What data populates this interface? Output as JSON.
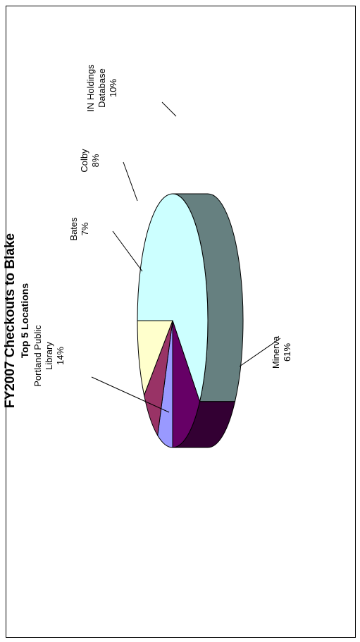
{
  "chart_data": {
    "type": "pie",
    "title": "FY2007 Checkouts to Blake",
    "subtitle": "Top 5 Locations",
    "orientation": "rotated-90-ccw",
    "style": "3d",
    "slices": [
      {
        "name": "Minerva",
        "label_lines": [
          "Minerva",
          "61%"
        ],
        "value": 61,
        "color": "#ccffff",
        "side_color": "#668080"
      },
      {
        "name": "Portland Public Library",
        "label_lines": [
          "Portland Public",
          "Library",
          "14%"
        ],
        "value": 14,
        "color": "#660066",
        "side_color": "#330033"
      },
      {
        "name": "Bates",
        "label_lines": [
          "Bates",
          "7%"
        ],
        "value": 7,
        "color": "#9999ff",
        "side_color": "#4d4d80"
      },
      {
        "name": "Colby",
        "label_lines": [
          "Colby",
          "8%"
        ],
        "value": 8,
        "color": "#993366",
        "side_color": "#4d1a33"
      },
      {
        "name": "IN Holdings Database",
        "label_lines": [
          "IN Holdings",
          "Database",
          "10%"
        ],
        "value": 10,
        "color": "#ffffcc",
        "side_color": "#808066"
      }
    ]
  }
}
